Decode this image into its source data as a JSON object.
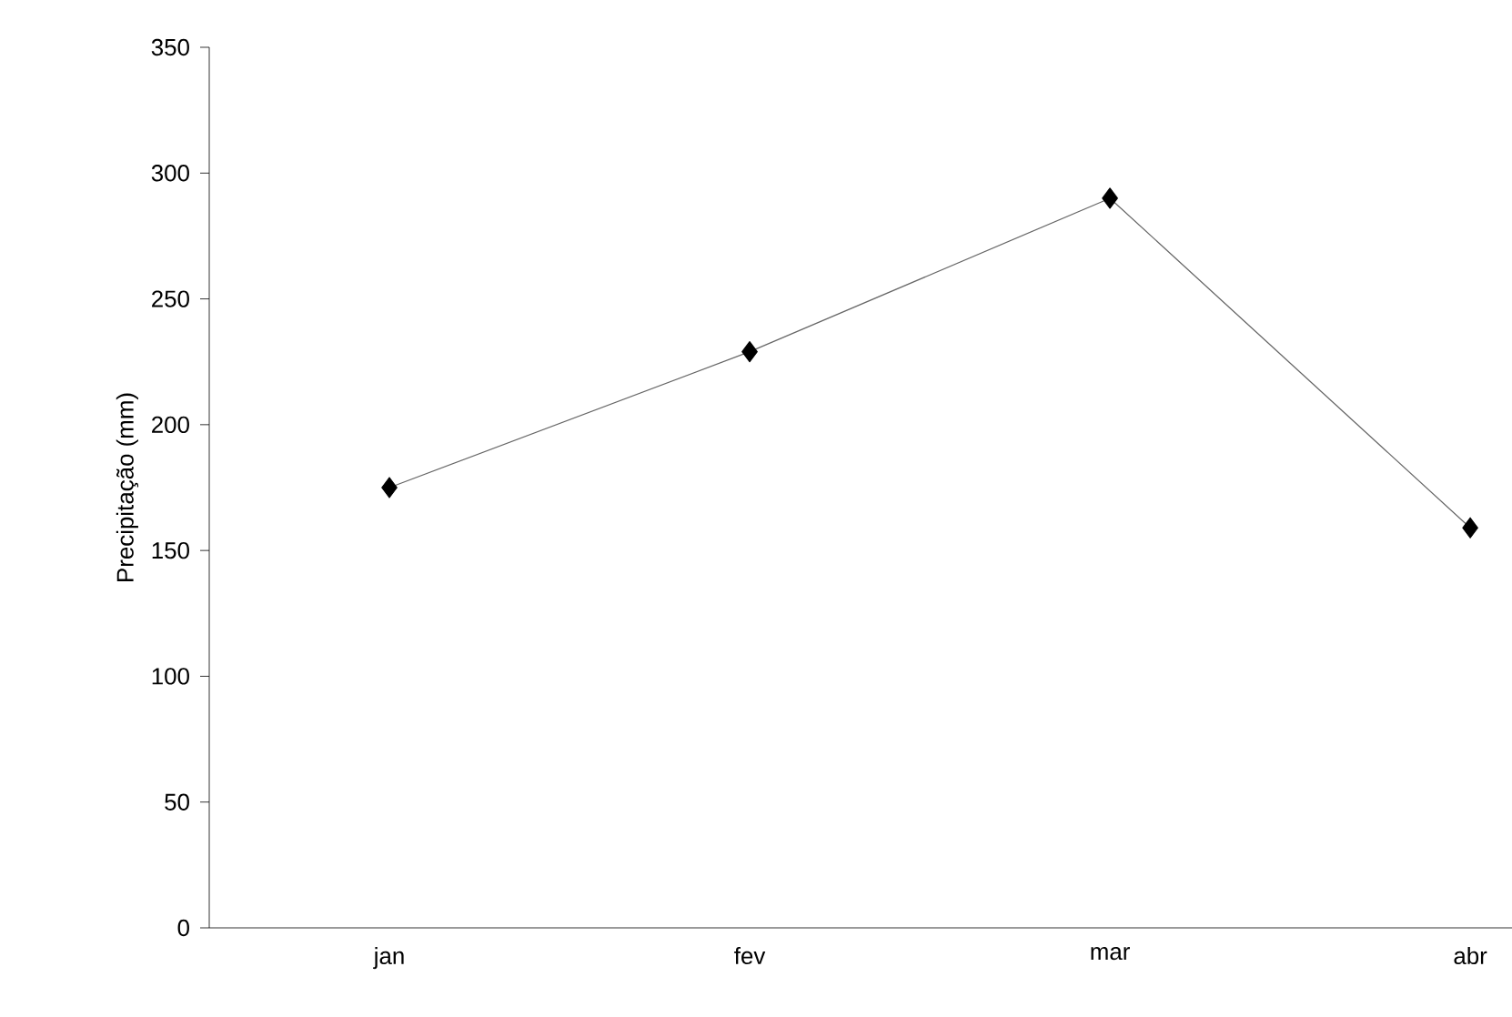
{
  "chart_data": {
    "type": "line",
    "ylabel": "Precipitação (mm)",
    "categories": [
      "jan",
      "fev",
      "mar",
      "abr"
    ],
    "series": [
      {
        "color": "#000000",
        "values": [
          175,
          229,
          290,
          159
        ]
      }
    ],
    "ylim": [
      0,
      350
    ],
    "yticks": [
      0,
      50,
      100,
      150,
      200,
      250,
      300,
      350
    ],
    "marker": "diamond",
    "line_style": "solid"
  }
}
